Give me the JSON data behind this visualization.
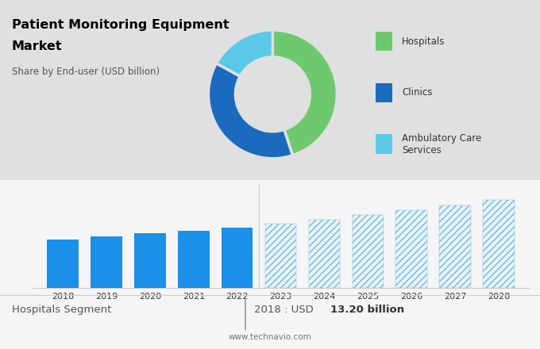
{
  "title_line1": "Patient Monitoring Equipment",
  "title_line2": "Market",
  "subtitle": "Share by End-user (USD billion)",
  "bg_top": "#e0e0e0",
  "bg_bottom": "#f5f5f5",
  "pie_colors": [
    "#6ec96e",
    "#1a6bbf",
    "#5bc8e8"
  ],
  "pie_values": [
    45,
    38,
    17
  ],
  "pie_labels": [
    "Hospitals",
    "Clinics",
    "Ambulatory Care\nServices"
  ],
  "bar_years_solid": [
    2018,
    2019,
    2020,
    2021,
    2022
  ],
  "bar_values_solid": [
    13.2,
    14.1,
    14.8,
    15.6,
    16.5
  ],
  "bar_years_hatched": [
    2023,
    2024,
    2025,
    2026,
    2027,
    2028
  ],
  "bar_values_hatched": [
    17.5,
    18.6,
    19.8,
    21.1,
    22.5,
    24.0
  ],
  "bar_color_solid": "#1a90e8",
  "bar_color_hatched_face": "#e8f4fb",
  "bar_color_hatched_edge": "#6bb8e0",
  "footer_left": "Hospitals Segment",
  "footer_right_prefix": "2018 : USD ",
  "footer_right_bold": "13.20 billion",
  "footer_url": "www.technavio.com",
  "ylim": [
    0,
    28
  ],
  "grid_color": "#cccccc",
  "legend_square_colors": [
    "#6ec96e",
    "#1a6bbf",
    "#5bc8e8"
  ]
}
